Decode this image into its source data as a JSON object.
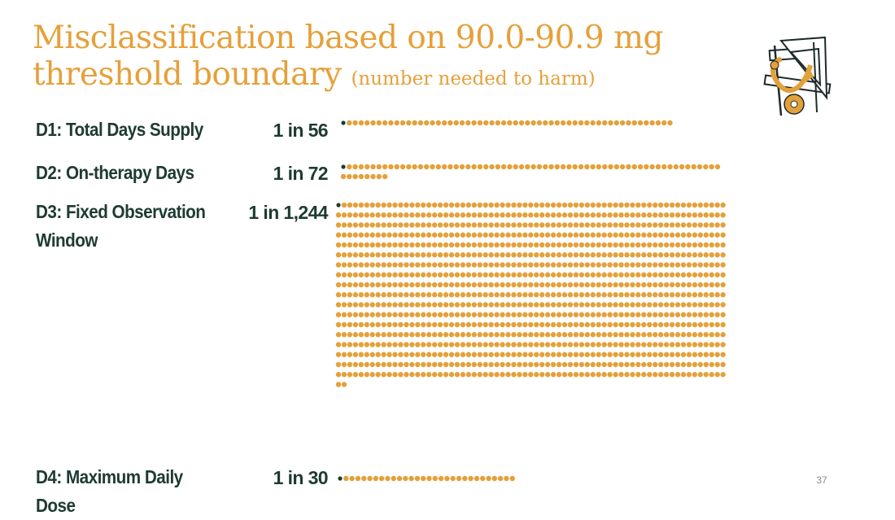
{
  "slide": {
    "title_main": "Misclassification based on 90.0-90.9 mg threshold boundary",
    "title_sub": "(number needed to harm)",
    "page_number": "37"
  },
  "colors": {
    "title": "#e6a03a",
    "label": "#1e3b33",
    "dot_harm": "#e3a13a",
    "dot_one": "#1e3b33"
  },
  "icons": {
    "logo": "ruler-tape-measure-icon"
  },
  "chart_data": {
    "type": "pictograph",
    "unit": "1 dark dot = 1 patient misclassified; orange dots = remaining patients",
    "rows": [
      {
        "label": "D1: Total Days Supply",
        "ratio_text": "1 in 56",
        "nnh": 56
      },
      {
        "label": "D2: On-therapy Days",
        "ratio_text": "1 in 72",
        "nnh": 72
      },
      {
        "label": "D3: Fixed Observation Window",
        "ratio_text": "1 in 1,244",
        "nnh": 1244
      },
      {
        "label": "D4: Maximum Daily Dose",
        "ratio_text": "1 in 30",
        "nnh": 30
      }
    ]
  }
}
